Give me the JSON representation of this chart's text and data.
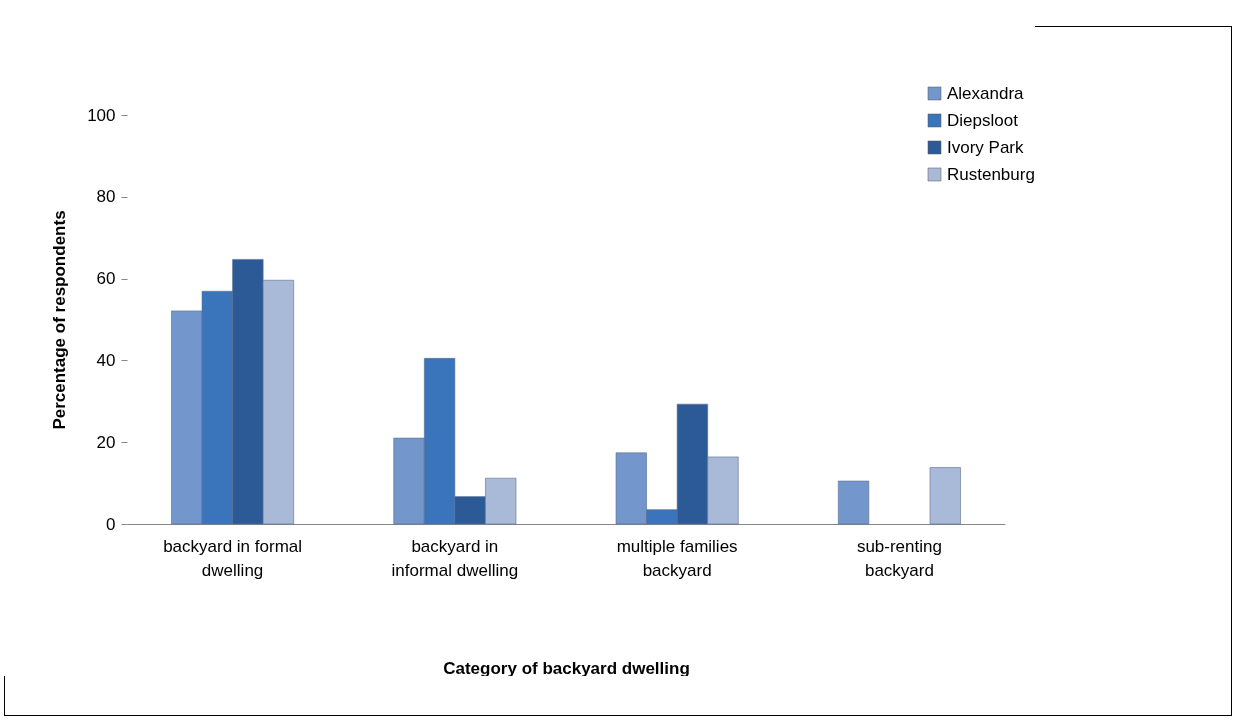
{
  "chart_data": {
    "type": "bar",
    "xlabel": "Category of backyard dwelling",
    "ylabel": "Percentage of respondents",
    "categories": [
      "backyard in formal dwelling",
      "backyard in informal dwelling",
      "multiple families backyard",
      "sub-renting backyard"
    ],
    "series": [
      {
        "name": "Alexandra",
        "color": "#7396cc",
        "values": [
          52.1,
          21.0,
          17.4,
          10.5
        ]
      },
      {
        "name": "Diepsloot",
        "color": "#3a74bb",
        "values": [
          56.9,
          40.5,
          3.5,
          null
        ]
      },
      {
        "name": "Ivory Park",
        "color": "#2c5a96",
        "values": [
          64.7,
          6.7,
          29.3,
          null
        ]
      },
      {
        "name": "Rustenburg",
        "color": "#a9b9d8",
        "values": [
          59.6,
          11.2,
          16.4,
          13.8
        ]
      }
    ],
    "ylim": [
      0,
      100
    ],
    "yticks": [
      0,
      20,
      40,
      60,
      80,
      100
    ],
    "grid": false,
    "legend": "top right"
  }
}
